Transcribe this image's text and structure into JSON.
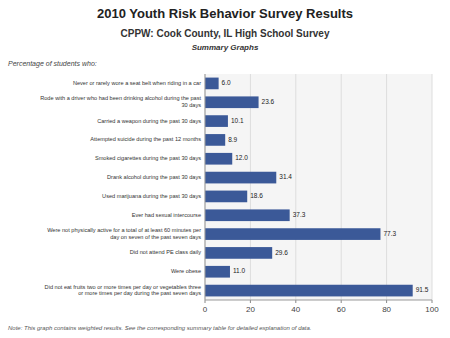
{
  "chart_data": {
    "type": "bar",
    "orientation": "horizontal",
    "title": "2010 Youth Risk Behavior Survey Results",
    "subtitle": "CPPW: Cook County, IL High School Survey",
    "annotations": [
      "Summary Graphs",
      "Note: This graph contains weighted results. See the corresponding summary table for detailed explanation of data."
    ],
    "ylabel": "Percentage of students  who:",
    "categories": [
      "Never or rarely wore a seat belt when riding in a car",
      "Rode with a driver who had been drinking alcohol during the past\n30 days",
      "Carried a weapon during the past 30 days",
      "Attempted suicide during the past 12 months",
      "Smoked cigarettes during the past 30 days",
      "Drank alcohol during the past 30 days",
      "Used marijuana during the past 30 days",
      "Ever had sexual intercourse",
      "Were not physically active for a total of at least 60 minutes per\nday on seven of the past seven days",
      "Did not attend PE class daily",
      "Were obese",
      "Did not eat fruits two or more times per day or vegetables three\nor more times per day during the past seven days"
    ],
    "values": [
      6.0,
      23.6,
      10.1,
      8.9,
      12.0,
      31.4,
      18.6,
      37.3,
      77.3,
      29.6,
      11.0,
      91.5
    ],
    "value_labels": [
      "6.0",
      "23.6",
      "10.1",
      "8.9",
      "12.0",
      "31.4",
      "18.6",
      "37.3",
      "77.3",
      "29.6",
      "11.0",
      "91.5"
    ],
    "data_labels": true,
    "color": "#3b5998",
    "xlim": [
      0,
      100
    ],
    "xticks": [
      0,
      20,
      40,
      60,
      80,
      100
    ],
    "grid": true
  }
}
